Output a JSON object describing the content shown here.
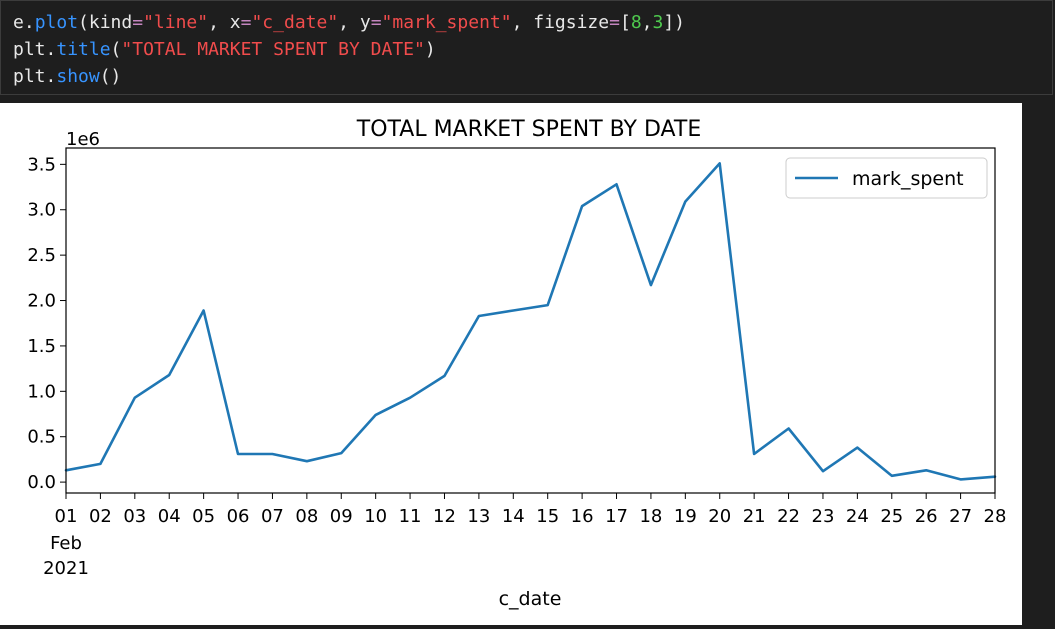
{
  "code_cell": {
    "lines": [
      [
        {
          "t": "e.",
          "c": "plain"
        },
        {
          "t": "plot",
          "c": "fn"
        },
        {
          "t": "(kind",
          "c": "plain"
        },
        {
          "t": "=",
          "c": "op"
        },
        {
          "t": "\"line\"",
          "c": "str"
        },
        {
          "t": ", x",
          "c": "plain"
        },
        {
          "t": "=",
          "c": "op"
        },
        {
          "t": "\"c_date\"",
          "c": "str"
        },
        {
          "t": ", y",
          "c": "plain"
        },
        {
          "t": "=",
          "c": "op"
        },
        {
          "t": "\"mark_spent\"",
          "c": "str"
        },
        {
          "t": ", figsize",
          "c": "plain"
        },
        {
          "t": "=",
          "c": "op"
        },
        {
          "t": "[",
          "c": "plain"
        },
        {
          "t": "8",
          "c": "num"
        },
        {
          "t": ",",
          "c": "plain"
        },
        {
          "t": "3",
          "c": "num"
        },
        {
          "t": "])",
          "c": "plain"
        }
      ],
      [
        {
          "t": "plt.",
          "c": "plain"
        },
        {
          "t": "title",
          "c": "fn"
        },
        {
          "t": "(",
          "c": "plain"
        },
        {
          "t": "\"TOTAL MARKET SPENT BY DATE\"",
          "c": "str"
        },
        {
          "t": ")",
          "c": "plain"
        }
      ],
      [
        {
          "t": "plt.",
          "c": "plain"
        },
        {
          "t": "show",
          "c": "fn"
        },
        {
          "t": "()",
          "c": "plain"
        }
      ]
    ]
  },
  "chart_data": {
    "type": "line",
    "title": "TOTAL MARKET SPENT BY DATE",
    "xlabel": "c_date",
    "ylabel": "",
    "y_offset_label": "1e6",
    "x_tick_labels": [
      "01",
      "02",
      "03",
      "04",
      "05",
      "06",
      "07",
      "08",
      "09",
      "10",
      "11",
      "12",
      "13",
      "14",
      "15",
      "16",
      "17",
      "18",
      "19",
      "20",
      "21",
      "22",
      "23",
      "24",
      "25",
      "26",
      "27",
      "28"
    ],
    "x_month_label": "Feb",
    "x_year_label": "2021",
    "x": [
      "2021-02-01",
      "2021-02-02",
      "2021-02-03",
      "2021-02-04",
      "2021-02-05",
      "2021-02-06",
      "2021-02-07",
      "2021-02-08",
      "2021-02-09",
      "2021-02-10",
      "2021-02-11",
      "2021-02-12",
      "2021-02-13",
      "2021-02-14",
      "2021-02-15",
      "2021-02-16",
      "2021-02-17",
      "2021-02-18",
      "2021-02-19",
      "2021-02-20",
      "2021-02-21",
      "2021-02-22",
      "2021-02-23",
      "2021-02-24",
      "2021-02-25",
      "2021-02-26",
      "2021-02-27",
      "2021-02-28"
    ],
    "series": [
      {
        "name": "mark_spent",
        "color": "#1f77b4",
        "values": [
          130000,
          200000,
          930000,
          1180000,
          1890000,
          310000,
          310000,
          230000,
          320000,
          740000,
          930000,
          1170000,
          1830000,
          1890000,
          1950000,
          3040000,
          3280000,
          2170000,
          3090000,
          3510000,
          310000,
          590000,
          120000,
          380000,
          70000,
          130000,
          30000,
          60000
        ]
      }
    ],
    "y_ticks": [
      "0.0",
      "0.5",
      "1.0",
      "1.5",
      "2.0",
      "2.5",
      "3.0",
      "3.5"
    ],
    "ylim": [
      -120000,
      3680000
    ],
    "grid": false,
    "legend_position": "upper right"
  }
}
